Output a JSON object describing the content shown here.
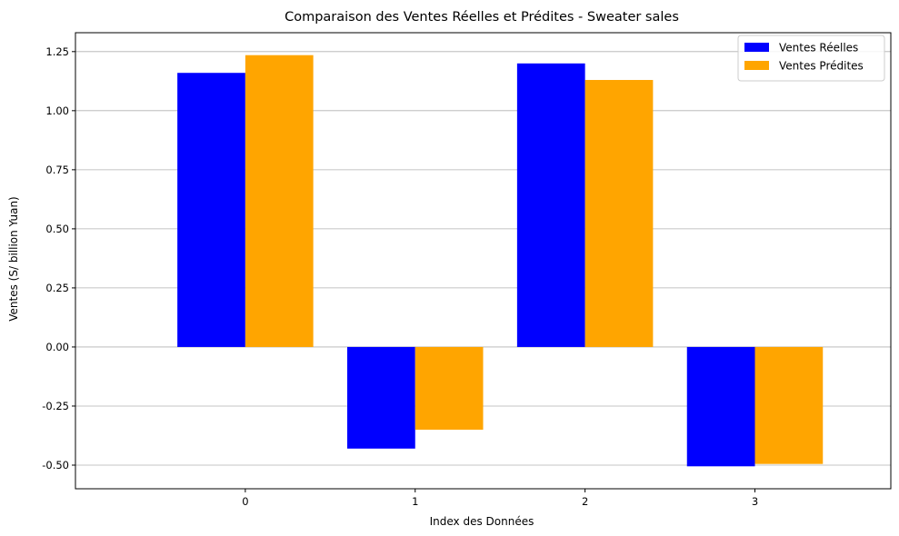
{
  "chart_data": {
    "type": "bar",
    "title": "Comparaison des Ventes Réelles et Prédites - Sweater sales",
    "xlabel": "Index des Données",
    "ylabel": "Ventes (S/ billion Yuan)",
    "categories": [
      "0",
      "1",
      "2",
      "3"
    ],
    "series": [
      {
        "name": "Ventes Réelles",
        "color": "#0000ff",
        "values": [
          1.16,
          -0.43,
          1.2,
          -0.505
        ]
      },
      {
        "name": "Ventes Prédites",
        "color": "#ffa500",
        "values": [
          1.235,
          -0.35,
          1.13,
          -0.495
        ]
      }
    ],
    "yticks": [
      "1.25",
      "1.00",
      "0.75",
      "0.50",
      "0.25",
      "0.00",
      "-0.25",
      "-0.50"
    ],
    "ylim": [
      -0.6,
      1.33
    ],
    "grid": "y",
    "legend_position": "top-right"
  }
}
